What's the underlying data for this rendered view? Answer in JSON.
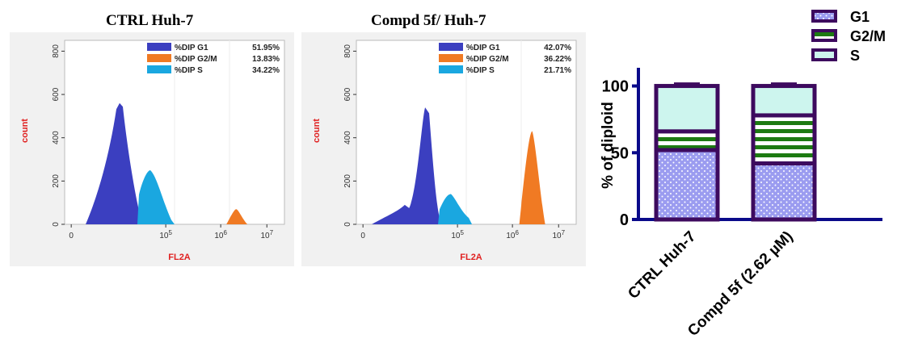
{
  "chart_data": [
    {
      "type": "area",
      "title": "CTRL Huh-7",
      "xlabel": "FL2A",
      "ylabel": "count",
      "x_ticks": [
        "0",
        "10^5",
        "10^6",
        "10^7"
      ],
      "y_ticks": [
        "0",
        "200",
        "400",
        "600",
        "800"
      ],
      "ylim": [
        0,
        850
      ],
      "legend": [
        {
          "name": "%DIP G1",
          "value": "51.95%",
          "color": "#3b3fc0"
        },
        {
          "name": "%DIP G2/M",
          "value": "13.83%",
          "color": "#f07a23"
        },
        {
          "name": "%DIP S",
          "value": "34.22%",
          "color": "#1aa7e0"
        }
      ],
      "peaks": {
        "g1_position": 0.25,
        "g1_count": 560,
        "s_count": 250,
        "g2m_position": 0.78,
        "g2m_count": 70
      }
    },
    {
      "type": "area",
      "title": "Compd 5f/ Huh-7",
      "xlabel": "FL2A",
      "ylabel": "count",
      "x_ticks": [
        "0",
        "10^5",
        "10^6",
        "10^7"
      ],
      "y_ticks": [
        "0",
        "200",
        "400",
        "600",
        "800"
      ],
      "ylim": [
        0,
        850
      ],
      "legend": [
        {
          "name": "%DIP G1",
          "value": "42.07%",
          "color": "#3b3fc0"
        },
        {
          "name": "%DIP G2/M",
          "value": "36.22%",
          "color": "#f07a23"
        },
        {
          "name": "%DIP S",
          "value": "21.71%",
          "color": "#1aa7e0"
        }
      ],
      "peaks": {
        "g1_position": 0.32,
        "g1_count": 540,
        "s_count": 140,
        "g2m_position": 0.8,
        "g2m_count": 430
      }
    },
    {
      "type": "bar",
      "stacked": true,
      "categories": [
        "CTRL Huh-7",
        "Compd 5f (2.62 µM)"
      ],
      "series": [
        {
          "name": "G1",
          "values": [
            52,
            42
          ],
          "errors": [
            2,
            2
          ],
          "color": "#9b9cf0"
        },
        {
          "name": "G2/M",
          "values": [
            14,
            36
          ],
          "errors": [
            2,
            2
          ],
          "color": "#1d7a12"
        },
        {
          "name": "S",
          "values": [
            34,
            22
          ],
          "errors": [
            1.5,
            1.5
          ],
          "color": "#cdf5ee"
        }
      ],
      "ylabel": "% of diploid",
      "y_ticks": [
        "0",
        "50",
        "100"
      ],
      "ylim": [
        0,
        110
      ],
      "legend_position": "top-right"
    }
  ]
}
